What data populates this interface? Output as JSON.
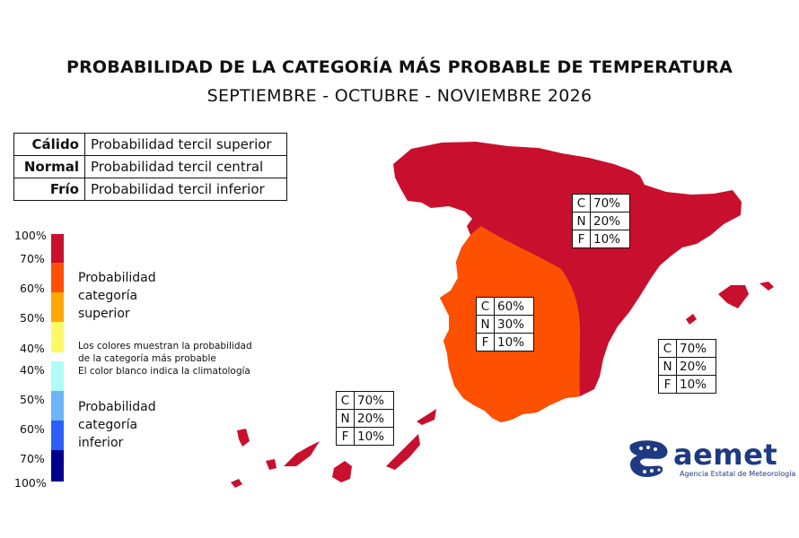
{
  "title": "PROBABILIDAD DE LA CATEGORÍA MÁS PROBABLE DE TEMPERATURA",
  "subtitle": "SEPTIEMBRE - OCTUBRE - NOVIEMBRE 2026",
  "tercile_table": [
    {
      "key": "Cálido",
      "desc": "Probabilidad tercil superior"
    },
    {
      "key": "Normal",
      "desc": "Probabilidad tercil central"
    },
    {
      "key": "Frío",
      "desc": "Probabilidad tercil inferior"
    }
  ],
  "scale": {
    "upper_labels": [
      "100%",
      "70%",
      "60%",
      "50%",
      "40%"
    ],
    "lower_labels": [
      "40%",
      "50%",
      "60%",
      "70%",
      "100%"
    ],
    "upper_caption": [
      "Probabilidad",
      "categoría",
      "superior"
    ],
    "lower_caption": [
      "Probabilidad",
      "categoría",
      "inferior"
    ],
    "note_line1": "Los colores muestran la probabilidad",
    "note_line2": "de la categoría más probable",
    "note_line3": "El color blanco indica la climatología",
    "colors": [
      "#c8102e",
      "#fd5000",
      "#fca800",
      "#fef867",
      "#aefcf8",
      "#6bb4f8",
      "#2b60f6",
      "#00008f"
    ]
  },
  "regions": [
    {
      "name": "Norte y este peninsular, Canarias y Baleares",
      "color": "#c8102e"
    },
    {
      "name": "Suroeste peninsular",
      "color": "#fd5000"
    }
  ],
  "boxes": {
    "north": [
      {
        "k": "C",
        "v": "70%"
      },
      {
        "k": "N",
        "v": "20%"
      },
      {
        "k": "F",
        "v": "10%"
      }
    ],
    "southwest": [
      {
        "k": "C",
        "v": "60%"
      },
      {
        "k": "N",
        "v": "30%"
      },
      {
        "k": "F",
        "v": "10%"
      }
    ],
    "baleares": [
      {
        "k": "C",
        "v": "70%"
      },
      {
        "k": "N",
        "v": "20%"
      },
      {
        "k": "F",
        "v": "10%"
      }
    ],
    "canarias": [
      {
        "k": "C",
        "v": "70%"
      },
      {
        "k": "N",
        "v": "20%"
      },
      {
        "k": "F",
        "v": "10%"
      }
    ]
  },
  "logo": {
    "name": "aemet",
    "subtitle": "Agencia Estatal de Meteorología"
  }
}
